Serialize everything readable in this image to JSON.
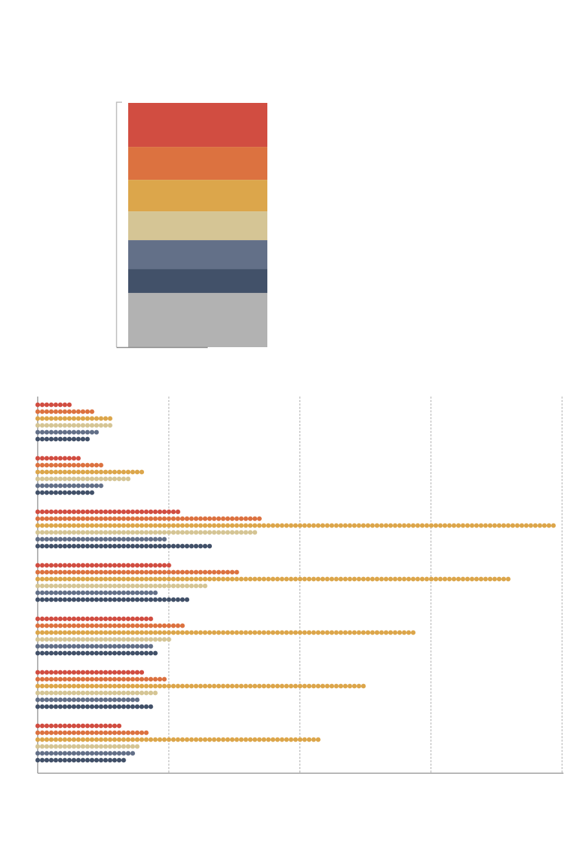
{
  "colors": {
    "red": "#d14d41",
    "orange": "#dc7240",
    "gold": "#dca64b",
    "tan": "#d5c595",
    "slate": "#637088",
    "navy": "#425169",
    "gray": "#b2b2b2",
    "axis": "#999999",
    "grid": "#aaaaaa"
  },
  "chart_data": [
    {
      "type": "bar",
      "stacked": true,
      "title": "",
      "segments": [
        {
          "color": "#d14d41",
          "percent": 18.0
        },
        {
          "color": "#dc7240",
          "percent": 13.5
        },
        {
          "color": "#dca64b",
          "percent": 12.9
        },
        {
          "color": "#d5c595",
          "percent": 11.8
        },
        {
          "color": "#637088",
          "percent": 11.8
        },
        {
          "color": "#425169",
          "percent": 9.8
        },
        {
          "color": "#b2b2b2",
          "percent": 22.2
        }
      ]
    },
    {
      "type": "bar",
      "style": "dot-strip",
      "orientation": "horizontal",
      "title": "",
      "xlabel": "",
      "ylabel": "",
      "xlim": [
        0,
        116
      ],
      "grid_step": 29,
      "grid": true,
      "series_colors": [
        "#d14d41",
        "#dc7240",
        "#dca64b",
        "#d5c595",
        "#637088",
        "#425169"
      ],
      "groups": [
        [
          8,
          13,
          17,
          17,
          14,
          12
        ],
        [
          10,
          15,
          24,
          21,
          15,
          13
        ],
        [
          32,
          50,
          115,
          49,
          29,
          39
        ],
        [
          30,
          45,
          105,
          38,
          27,
          34
        ],
        [
          26,
          33,
          84,
          30,
          26,
          27
        ],
        [
          24,
          29,
          73,
          27,
          23,
          26
        ],
        [
          19,
          25,
          63,
          23,
          22,
          20
        ]
      ]
    }
  ]
}
